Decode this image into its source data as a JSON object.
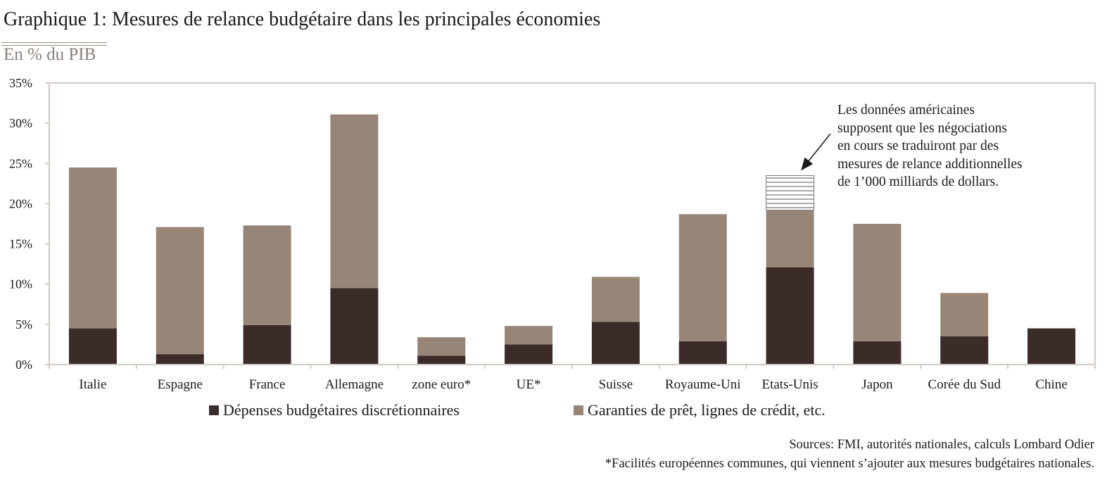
{
  "title": "Graphique 1: Mesures de relance budgétaire dans les principales économies",
  "subtitle": "En % du PIB",
  "colors": {
    "dark": "#3b2b29",
    "light": "#978578",
    "axis": "#d4c8c3",
    "hatch": "#555555"
  },
  "chart_data": {
    "type": "bar",
    "stacked": true,
    "categories": [
      "Italie",
      "Espagne",
      "France",
      "Allemagne",
      "zone euro*",
      "UE*",
      "Suisse",
      "Royaume-Uni",
      "Etats-Unis",
      "Japon",
      "Corée du Sud",
      "Chine"
    ],
    "series": [
      {
        "name": "Dépenses budgétaires discrétionnaires",
        "color": "#3b2b29",
        "values": [
          4.5,
          1.3,
          4.9,
          9.5,
          1.1,
          2.5,
          5.3,
          2.9,
          12.1,
          2.9,
          3.5,
          4.5
        ]
      },
      {
        "name": "Garanties de prêt, lignes de crédit, etc.",
        "color": "#978578",
        "values": [
          20.0,
          15.8,
          12.4,
          21.6,
          2.3,
          2.3,
          5.6,
          15.8,
          7.1,
          14.6,
          5.4,
          0
        ]
      },
      {
        "name": "",
        "color": "hatched",
        "values": [
          0,
          0,
          0,
          0,
          0,
          0,
          0,
          0,
          4.3,
          0,
          0,
          0
        ]
      }
    ],
    "ylim": [
      0,
      35
    ],
    "yticks": [
      "0%",
      "5%",
      "10%",
      "15%",
      "20%",
      "25%",
      "30%",
      "35%"
    ],
    "ytick_values": [
      0,
      5,
      10,
      15,
      20,
      25,
      30,
      35
    ],
    "legend_position": "bottom",
    "annotation": {
      "lines": [
        "Les données américaines",
        "supposent que les négociations",
        "en cours se traduiront par des",
        "mesures de relance additionnelles",
        "de 1’000 milliards de dollars."
      ],
      "target_category": "Etats-Unis"
    }
  },
  "sources": "Sources: FMI, autorités nationales, calculs Lombard Odier",
  "footnote": "*Facilités européennes communes, qui viennent s’ajouter aux mesures budgétaires nationales."
}
